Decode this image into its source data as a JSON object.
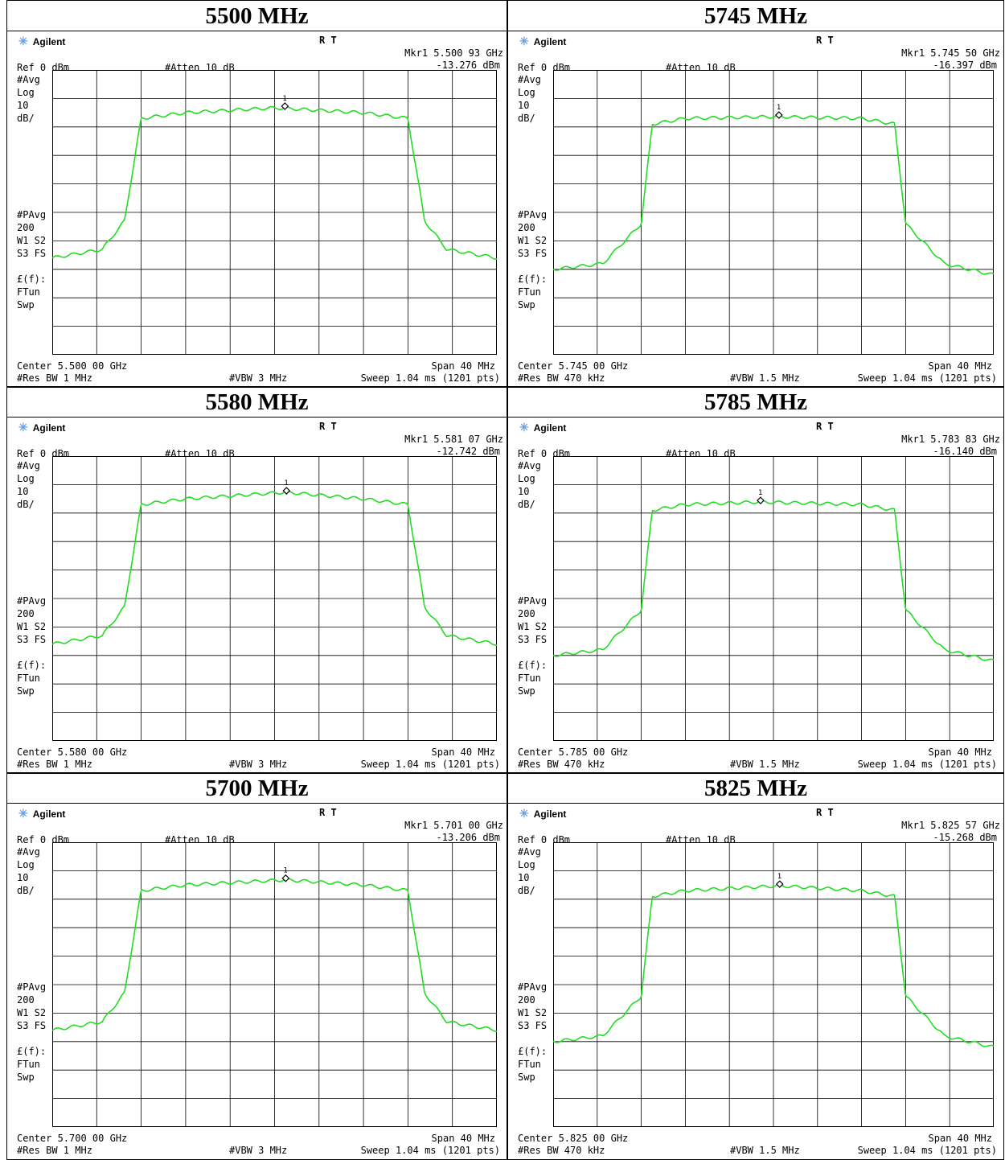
{
  "panels": [
    {
      "title": "5500 MHz",
      "brand": "Agilent",
      "rt": "R  T",
      "mkr": "Mkr1  5.500 93 GHz",
      "mkr_val": "-13.276 dBm",
      "ref": "Ref 0 dBm",
      "atten": "#Atten 10 dB",
      "avg": "#Avg",
      "log": "Log",
      "scale": "10",
      "unit": "dB/",
      "pavg": "#PAvg",
      "count": "200",
      "w1s2": "W1  S2",
      "s3fs": "S3  FS",
      "ef": "£(f):",
      "ftun": "FTun",
      "swp": "Swp",
      "center": "Center 5.500 00 GHz",
      "span": "Span 40 MHz",
      "rbw": "#Res BW 1 MHz",
      "vbw": "#VBW 3 MHz",
      "sweep": "Sweep 1.04 ms (1201 pts)"
    },
    {
      "title": "5745 MHz",
      "brand": "Agilent",
      "rt": "R  T",
      "mkr": "Mkr1  5.745 50 GHz",
      "mkr_val": "-16.397 dBm",
      "ref": "Ref 0 dBm",
      "atten": "#Atten 10 dB",
      "avg": "#Avg",
      "log": "Log",
      "scale": "10",
      "unit": "dB/",
      "pavg": "#PAvg",
      "count": "200",
      "w1s2": "W1  S2",
      "s3fs": "S3  FS",
      "ef": "£(f):",
      "ftun": "FTun",
      "swp": "Swp",
      "center": "Center 5.745 00 GHz",
      "span": "Span 40 MHz",
      "rbw": "#Res BW 470 kHz",
      "vbw": "#VBW 1.5 MHz",
      "sweep": "Sweep 1.04 ms (1201 pts)"
    },
    {
      "title": "5580 MHz",
      "brand": "Agilent",
      "rt": "R  T",
      "mkr": "Mkr1  5.581 07 GHz",
      "mkr_val": "-12.742 dBm",
      "ref": "Ref 0 dBm",
      "atten": "#Atten 10 dB",
      "avg": "#Avg",
      "log": "Log",
      "scale": "10",
      "unit": "dB/",
      "pavg": "#PAvg",
      "count": "200",
      "w1s2": "W1  S2",
      "s3fs": "S3  FS",
      "ef": "£(f):",
      "ftun": "FTun",
      "swp": "Swp",
      "center": "Center 5.580 00 GHz",
      "span": "Span 40 MHz",
      "rbw": "#Res BW 1 MHz",
      "vbw": "#VBW 3 MHz",
      "sweep": "Sweep 1.04 ms (1201 pts)"
    },
    {
      "title": "5785 MHz",
      "brand": "Agilent",
      "rt": "R  T",
      "mkr": "Mkr1  5.783 83 GHz",
      "mkr_val": "-16.140 dBm",
      "ref": "Ref 0 dBm",
      "atten": "#Atten 10 dB",
      "avg": "#Avg",
      "log": "Log",
      "scale": "10",
      "unit": "dB/",
      "pavg": "#PAvg",
      "count": "200",
      "w1s2": "W1  S2",
      "s3fs": "S3  FS",
      "ef": "£(f):",
      "ftun": "FTun",
      "swp": "Swp",
      "center": "Center 5.785 00 GHz",
      "span": "Span 40 MHz",
      "rbw": "#Res BW 470 kHz",
      "vbw": "#VBW 1.5 MHz",
      "sweep": "Sweep 1.04 ms (1201 pts)"
    },
    {
      "title": "5700 MHz",
      "brand": "Agilent",
      "rt": "R  T",
      "mkr": "Mkr1  5.701 00 GHz",
      "mkr_val": "-13.206 dBm",
      "ref": "Ref 0 dBm",
      "atten": "#Atten 10 dB",
      "avg": "#Avg",
      "log": "Log",
      "scale": "10",
      "unit": "dB/",
      "pavg": "#PAvg",
      "count": "200",
      "w1s2": "W1  S2",
      "s3fs": "S3  FS",
      "ef": "£(f):",
      "ftun": "FTun",
      "swp": "Swp",
      "center": "Center 5.700 00 GHz",
      "span": "Span 40 MHz",
      "rbw": "#Res BW 1 MHz",
      "vbw": "#VBW 3 MHz",
      "sweep": "Sweep 1.04 ms (1201 pts)"
    },
    {
      "title": "5825 MHz",
      "brand": "Agilent",
      "rt": "R  T",
      "mkr": "Mkr1  5.825 57 GHz",
      "mkr_val": "-15.268 dBm",
      "ref": "Ref 0 dBm",
      "atten": "#Atten 10 dB",
      "avg": "#Avg",
      "log": "Log",
      "scale": "10",
      "unit": "dB/",
      "pavg": "#PAvg",
      "count": "200",
      "w1s2": "W1  S2",
      "s3fs": "S3  FS",
      "ef": "£(f):",
      "ftun": "FTun",
      "swp": "Swp",
      "center": "Center 5.825 00 GHz",
      "span": "Span 40 MHz",
      "rbw": "#Res BW 470 kHz",
      "vbw": "#VBW 1.5 MHz",
      "sweep": "Sweep 1.04 ms (1201 pts)"
    }
  ],
  "colors": {
    "trace": "#22dd22",
    "grid": "#000000",
    "star": "#6aa0e6"
  },
  "chart_data": [
    {
      "type": "line",
      "title": "5500 MHz",
      "xlim": [
        -20,
        20
      ],
      "ylim": [
        -100,
        0
      ],
      "x": [
        -20,
        -15.5,
        -13.5,
        -12,
        -8,
        0,
        8,
        12,
        13.5,
        15.5,
        20
      ],
      "y": [
        -66,
        -63,
        -53,
        -17,
        -15,
        -13.3,
        -15,
        -17,
        -53,
        -63,
        -66
      ],
      "marker": {
        "x": 0.93,
        "y": -13.276,
        "label": "1"
      }
    },
    {
      "title": "5745 MHz",
      "type": "line",
      "xlim": [
        -20,
        20
      ],
      "ylim": [
        -100,
        0
      ],
      "x": [
        -20,
        -15.5,
        -12,
        -11,
        -8,
        0,
        8,
        11,
        12,
        15.5,
        20
      ],
      "y": [
        -70,
        -68,
        -54,
        -19,
        -17,
        -16.4,
        -17,
        -19,
        -54,
        -68,
        -72
      ],
      "marker": {
        "x": 0.5,
        "y": -16.397,
        "label": "1"
      }
    },
    {
      "title": "5580 MHz",
      "type": "line",
      "xlim": [
        -20,
        20
      ],
      "ylim": [
        -100,
        0
      ],
      "x": [
        -20,
        -15.5,
        -13.5,
        -12,
        -8,
        1,
        8,
        12,
        13.5,
        15.5,
        20
      ],
      "y": [
        -66,
        -63,
        -53,
        -17,
        -15,
        -12.7,
        -15,
        -17,
        -53,
        -63,
        -66
      ],
      "marker": {
        "x": 1.07,
        "y": -12.742,
        "label": "1"
      }
    },
    {
      "title": "5785 MHz",
      "type": "line",
      "xlim": [
        -20,
        20
      ],
      "ylim": [
        -100,
        0
      ],
      "x": [
        -20,
        -15.5,
        -12,
        -11,
        -8,
        -1.2,
        8,
        11,
        12,
        15.5,
        20
      ],
      "y": [
        -70,
        -68,
        -54,
        -19,
        -17,
        -16.1,
        -17,
        -19,
        -54,
        -68,
        -72
      ],
      "marker": {
        "x": -1.17,
        "y": -16.14,
        "label": "1"
      }
    },
    {
      "title": "5700 MHz",
      "type": "line",
      "xlim": [
        -20,
        20
      ],
      "ylim": [
        -100,
        0
      ],
      "x": [
        -20,
        -15.5,
        -13.5,
        -12,
        -8,
        1,
        8,
        12,
        13.5,
        15.5,
        20
      ],
      "y": [
        -66,
        -63,
        -53,
        -17,
        -15,
        -13.2,
        -15,
        -17,
        -53,
        -63,
        -66
      ],
      "marker": {
        "x": 1.0,
        "y": -13.206,
        "label": "1"
      }
    },
    {
      "title": "5825 MHz",
      "type": "line",
      "xlim": [
        -20,
        20
      ],
      "ylim": [
        -100,
        0
      ],
      "x": [
        -20,
        -15.5,
        -12,
        -11,
        -8,
        0.6,
        8,
        11,
        12,
        15.5,
        20
      ],
      "y": [
        -70,
        -68,
        -54,
        -19,
        -17,
        -15.3,
        -17,
        -19,
        -54,
        -68,
        -72
      ],
      "marker": {
        "x": 0.57,
        "y": -15.268,
        "label": "1"
      }
    }
  ]
}
